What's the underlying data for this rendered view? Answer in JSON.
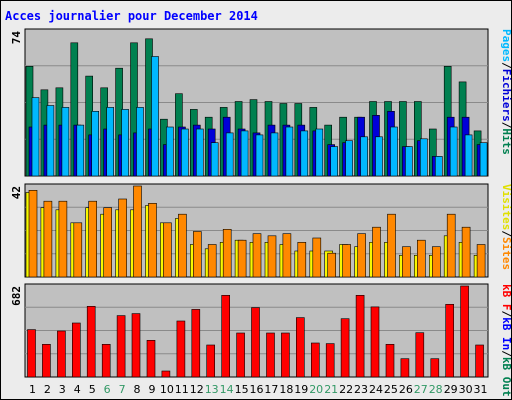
{
  "chart_data": {
    "type": "bar",
    "title": "Acces journalier pour December 2014",
    "categories": [
      "1",
      "2",
      "3",
      "4",
      "5",
      "6",
      "7",
      "8",
      "9",
      "10",
      "11",
      "12",
      "13",
      "14",
      "15",
      "16",
      "17",
      "18",
      "19",
      "20",
      "21",
      "22",
      "23",
      "24",
      "25",
      "26",
      "27",
      "28",
      "29",
      "30",
      "31"
    ],
    "weekend_days": [
      "6",
      "7",
      "13",
      "14",
      "20",
      "21",
      "27",
      "28"
    ],
    "panels": [
      {
        "name": "hits-files-pages",
        "max_label": "74",
        "ymax": 74,
        "series": [
          {
            "name": "Hits",
            "color": "#008050",
            "values": [
              56,
              44,
              45,
              68,
              51,
              45,
              55,
              68,
              70,
              29,
              42,
              34,
              30,
              35,
              38,
              39,
              38,
              37,
              37,
              35,
              26,
              30,
              30,
              38,
              38,
              38,
              38,
              24,
              56,
              48,
              23
            ]
          },
          {
            "name": "Fichiers",
            "color": "#0000d8",
            "values": [
              25,
              26,
              26,
              26,
              21,
              24,
              21,
              22,
              24,
              16,
              25,
              26,
              24,
              30,
              24,
              22,
              26,
              26,
              26,
              23,
              16,
              17,
              30,
              31,
              33,
              15,
              18,
              10,
              30,
              30,
              16
            ]
          },
          {
            "name": "Pages",
            "color": "#00b8ff",
            "values": [
              40,
              36,
              35,
              26,
              33,
              35,
              34,
              35,
              61,
              25,
              24,
              24,
              17,
              22,
              23,
              21,
              22,
              25,
              23,
              24,
              15,
              18,
              20,
              20,
              25,
              15,
              19,
              10,
              25,
              21,
              17
            ]
          }
        ]
      },
      {
        "name": "visits-sites",
        "max_label": "42",
        "ymax": 42,
        "series": [
          {
            "name": "Visites",
            "color": "#f8f800",
            "values": [
              39,
              32,
              31,
              25,
              32,
              29,
              31,
              31,
              33,
              25,
              27,
              15,
              13,
              16,
              17,
              16,
              16,
              15,
              12,
              12,
              12,
              15,
              14,
              16,
              16,
              10,
              10,
              10,
              19,
              16,
              10
            ]
          },
          {
            "name": "Sites",
            "color": "#ff8800",
            "values": [
              40,
              35,
              35,
              25,
              35,
              32,
              36,
              42,
              34,
              25,
              29,
              21,
              15,
              22,
              17,
              20,
              19,
              20,
              16,
              18,
              11,
              15,
              20,
              23,
              29,
              14,
              17,
              14,
              29,
              23,
              15
            ]
          }
        ]
      },
      {
        "name": "kb",
        "max_label": "682",
        "ymax": 682,
        "series": [
          {
            "name": "kB F",
            "color": "#ff0000",
            "values": [
              355,
              245,
              345,
              405,
              530,
              245,
              460,
              475,
              275,
              45,
              420,
              507,
              240,
              612,
              330,
              520,
              330,
              330,
              445,
              255,
              250,
              437,
              612,
              525,
              245,
              137,
              332,
              137,
              545,
              682,
              240
            ]
          }
        ]
      }
    ],
    "legend": {
      "panel1": [
        "Pages",
        "/",
        "Fichiers",
        "/",
        "Hits"
      ],
      "panel2": [
        "Visites",
        "/",
        "Sites"
      ],
      "panel3": [
        "kB F",
        "/",
        "kB In",
        "/",
        "kB Out"
      ]
    }
  }
}
